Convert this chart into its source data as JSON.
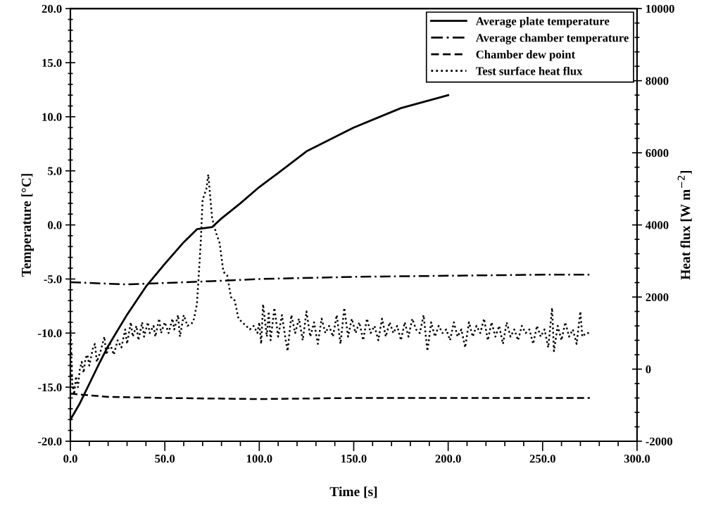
{
  "chart_data": {
    "type": "line",
    "xlabel": "Time [s]",
    "ylabel": "Temperature [°C]",
    "y2label": "Heat flux [W m$^{−2}$]",
    "xlim": [
      0,
      300
    ],
    "xticks": [
      {
        "value": 0,
        "label": "0.0"
      },
      {
        "value": 50,
        "label": "50.0"
      },
      {
        "value": 100,
        "label": "100.0"
      },
      {
        "value": 150,
        "label": "150.0"
      },
      {
        "value": 200,
        "label": "200.0"
      },
      {
        "value": 250,
        "label": "250.0"
      },
      {
        "value": 300,
        "label": "300.0"
      }
    ],
    "ylim": [
      -20,
      20
    ],
    "yticks": [
      {
        "value": -20,
        "label": "-20.0"
      },
      {
        "value": -15,
        "label": "-15.0"
      },
      {
        "value": -10,
        "label": "-10.0"
      },
      {
        "value": -5,
        "label": "-5.0"
      },
      {
        "value": 0,
        "label": "0.0"
      },
      {
        "value": 5,
        "label": "5.0"
      },
      {
        "value": 10,
        "label": "10.0"
      },
      {
        "value": 15,
        "label": "15.0"
      },
      {
        "value": 20,
        "label": "20.0"
      }
    ],
    "y2lim": [
      -2000,
      10000
    ],
    "y2ticks": [
      -2000,
      0,
      2000,
      4000,
      6000,
      8000,
      10000
    ],
    "grid": false,
    "legend": "top right",
    "series": [
      {
        "name": "Average plate temperature",
        "color": "#000000",
        "line_style": "solid",
        "x": [
          0,
          5,
          10,
          15,
          20,
          30,
          40,
          50,
          60,
          67,
          75,
          80,
          90,
          100,
          110,
          125,
          150,
          175,
          200
        ],
        "values": [
          -18,
          -16.5,
          -14.7,
          -12.9,
          -11.2,
          -8.3,
          -5.7,
          -3.6,
          -1.6,
          -0.4,
          -0.2,
          0.6,
          2.0,
          3.5,
          4.8,
          6.8,
          9.0,
          10.8,
          12.0
        ]
      },
      {
        "name": "Average chamber temperature",
        "color": "#000000",
        "line_style": "dashdot",
        "x": [
          0,
          30,
          60,
          75,
          100,
          150,
          200,
          250,
          275
        ],
        "values": [
          -5.3,
          -5.5,
          -5.3,
          -5.2,
          -5.0,
          -4.8,
          -4.7,
          -4.6,
          -4.6
        ]
      },
      {
        "name": "Chamber dew point",
        "color": "#000000",
        "line_style": "dashed",
        "x": [
          0,
          20,
          50,
          100,
          150,
          200,
          275
        ],
        "values": [
          -15.6,
          -15.9,
          -16.0,
          -16.1,
          -16.0,
          -16.0,
          -16.0
        ]
      },
      {
        "name": "Test surface heat flux",
        "color": "#000000",
        "line_style": "dotted",
        "axis": "y2",
        "x": [
          0,
          1,
          2,
          3,
          4,
          5,
          6,
          7,
          8,
          9,
          10,
          12,
          13,
          14,
          16,
          18,
          19,
          21,
          23,
          25,
          27,
          29,
          30,
          32,
          33,
          35,
          36,
          38,
          39,
          41,
          42,
          44,
          45,
          47,
          48,
          50,
          52,
          54,
          55,
          57,
          58,
          60,
          62,
          65,
          67,
          69,
          70,
          72,
          73,
          75,
          77,
          79,
          81,
          83,
          85,
          87,
          89,
          91,
          93,
          95,
          97,
          99,
          100,
          101,
          102,
          104,
          105,
          106,
          108,
          110,
          112,
          114,
          115,
          117,
          119,
          121,
          123,
          125,
          127,
          129,
          131,
          133,
          135,
          137,
          139,
          141,
          143,
          145,
          147,
          149,
          151,
          153,
          155,
          157,
          159,
          161,
          163,
          165,
          167,
          169,
          171,
          173,
          175,
          177,
          179,
          181,
          183,
          185,
          187,
          189,
          191,
          193,
          195,
          197,
          199,
          201,
          203,
          205,
          207,
          209,
          211,
          213,
          215,
          217,
          219,
          221,
          223,
          225,
          227,
          229,
          231,
          233,
          235,
          237,
          239,
          241,
          243,
          245,
          247,
          249,
          251,
          253,
          255,
          256,
          258,
          260,
          262,
          264,
          266,
          268,
          270,
          271,
          273,
          275
        ],
        "values": [
          1200,
          -400,
          -700,
          -200,
          -500,
          0,
          200,
          -100,
          300,
          400,
          100,
          600,
          700,
          200,
          500,
          900,
          400,
          700,
          400,
          800,
          600,
          1100,
          700,
          1300,
          900,
          1200,
          800,
          1300,
          900,
          1300,
          1000,
          1200,
          900,
          1400,
          1000,
          1300,
          1000,
          1400,
          1100,
          1500,
          900,
          1500,
          1200,
          1300,
          1800,
          3500,
          4700,
          5000,
          5400,
          4200,
          3800,
          3500,
          2700,
          2600,
          2000,
          1900,
          1400,
          1300,
          1200,
          1100,
          1200,
          1000,
          1300,
          700,
          1800,
          900,
          1600,
          800,
          1700,
          900,
          1500,
          800,
          500,
          1500,
          1000,
          1400,
          800,
          1600,
          900,
          1300,
          700,
          1400,
          1000,
          1200,
          900,
          1500,
          700,
          1700,
          900,
          1400,
          1000,
          1300,
          800,
          1400,
          1000,
          1200,
          800,
          1400,
          900,
          1300,
          1000,
          1200,
          800,
          1300,
          900,
          1400,
          1100,
          1000,
          1500,
          500,
          1300,
          900,
          1200,
          1000,
          1100,
          800,
          1300,
          900,
          1100,
          600,
          1300,
          900,
          1200,
          1000,
          1400,
          800,
          1300,
          900,
          1200,
          700,
          1300,
          900,
          1100,
          800,
          1200,
          1000,
          1100,
          700,
          1200,
          900,
          1100,
          600,
          1700,
          500,
          1200,
          800,
          1300,
          900,
          1100,
          700,
          1600,
          900,
          1000,
          1000
        ]
      }
    ]
  }
}
